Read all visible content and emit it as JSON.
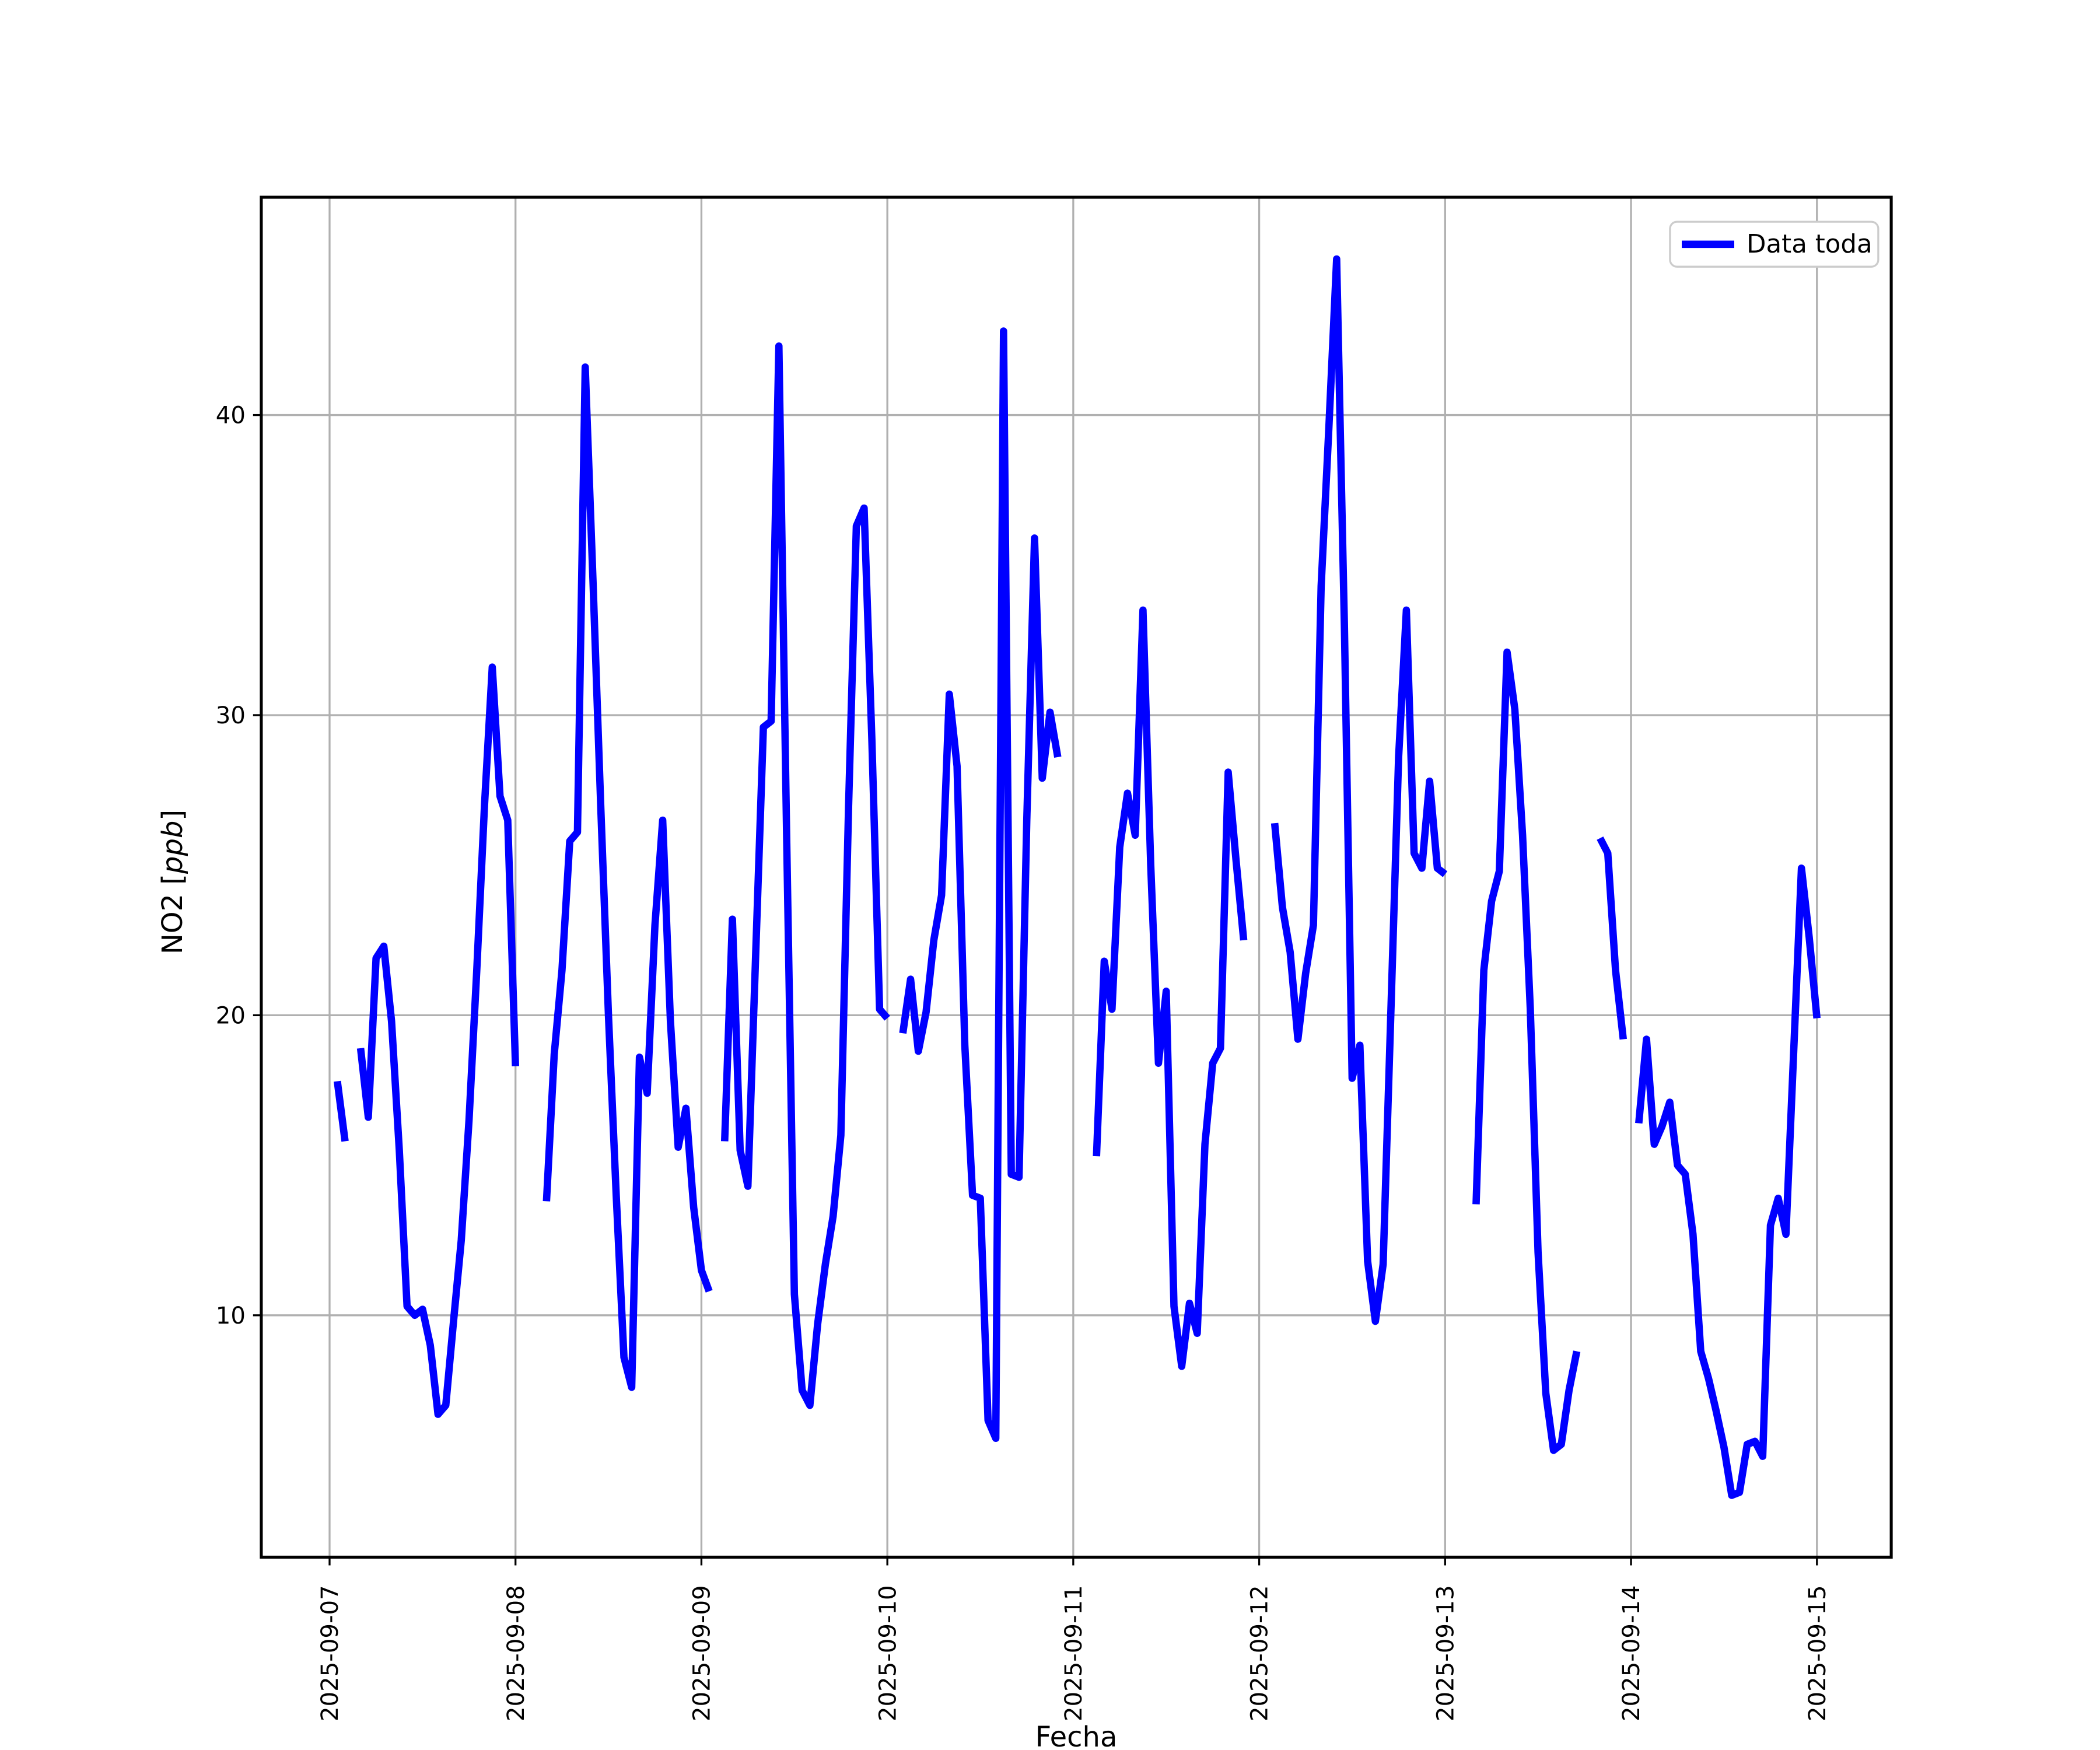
{
  "chart_data": {
    "type": "line",
    "title": "",
    "xlabel": "Fecha",
    "ylabel": "NO2 [ppb]",
    "ylabel_parts": {
      "prefix": "NO2 [",
      "italic": "ppb",
      "suffix": "]"
    },
    "legend_label": "Data toda",
    "legend_position": "upper right",
    "line_color": "#0000ff",
    "line_width": 4.2,
    "grid": true,
    "grid_color": "#b0b0b0",
    "x_tick_labels": [
      "2025-09-07",
      "2025-09-08",
      "2025-09-09",
      "2025-09-10",
      "2025-09-11",
      "2025-09-12",
      "2025-09-13",
      "2025-09-14",
      "2025-09-15"
    ],
    "y_ticks": [
      10,
      20,
      30,
      40
    ],
    "ylim": [
      1.94,
      47.26
    ],
    "xlim_hours": [
      -8.8,
      201.6
    ],
    "x_axis_note": "hours since 2025-09-07 00:00, one point per hour, null = data gap",
    "series": [
      {
        "name": "Data toda",
        "t_start_hour": 0,
        "t_step_hours": 1,
        "values": [
          null,
          17.8,
          15.8,
          null,
          18.9,
          16.6,
          21.9,
          22.3,
          19.8,
          15.5,
          10.3,
          10,
          10.2,
          9,
          6.7,
          7,
          9.8,
          12.5,
          16.5,
          21.5,
          27,
          31.6,
          27.3,
          26.5,
          18.3,
          null,
          null,
          null,
          13.8,
          18.7,
          21.5,
          25.8,
          26.1,
          41.6,
          34.5,
          27,
          20,
          14,
          8.6,
          7.6,
          18.6,
          17.4,
          23,
          26.5,
          19.8,
          15.6,
          16.9,
          13.6,
          11.5,
          10.8,
          null,
          15.8,
          23.2,
          15.5,
          14.3,
          22,
          29.6,
          29.8,
          42.3,
          26,
          10.7,
          7.5,
          7,
          9.7,
          11.7,
          13.3,
          16,
          27,
          36.3,
          36.9,
          29.2,
          20.2,
          19.9,
          null,
          19.4,
          21.2,
          18.8,
          20.1,
          22.5,
          24,
          30.7,
          28.3,
          19,
          14,
          13.9,
          6.5,
          5.9,
          42.8,
          14.7,
          14.6,
          26.5,
          35.9,
          27.9,
          30.1,
          28.6,
          null,
          null,
          null,
          null,
          15.3,
          21.8,
          20.2,
          25.6,
          27.4,
          26,
          33.5,
          25,
          18.4,
          20.8,
          10.3,
          8.3,
          10.4,
          9.4,
          15.7,
          18.4,
          18.9,
          28.1,
          25.2,
          22.5,
          null,
          null,
          null,
          26.4,
          23.6,
          22.1,
          19.2,
          21.4,
          23,
          34.3,
          39.6,
          45.2,
          33,
          17.9,
          19,
          11.8,
          9.8,
          11.7,
          20.1,
          28.6,
          33.5,
          25.4,
          24.9,
          27.8,
          24.9,
          24.7,
          null,
          null,
          null,
          13.7,
          21.5,
          23.8,
          24.8,
          32.1,
          30.2,
          26,
          20.2,
          12.1,
          7.4,
          5.5,
          5.7,
          7.5,
          8.8,
          null,
          null,
          25.9,
          25.4,
          21.5,
          19.2,
          null,
          16.4,
          19.2,
          15.7,
          16.3,
          17.1,
          15,
          14.7,
          12.7,
          8.8,
          7.9,
          6.8,
          5.6,
          4,
          4.1,
          5.7,
          5.8,
          5.3,
          13,
          13.9,
          12.7,
          18.8,
          24.9,
          22.6,
          19.9
        ]
      }
    ]
  }
}
